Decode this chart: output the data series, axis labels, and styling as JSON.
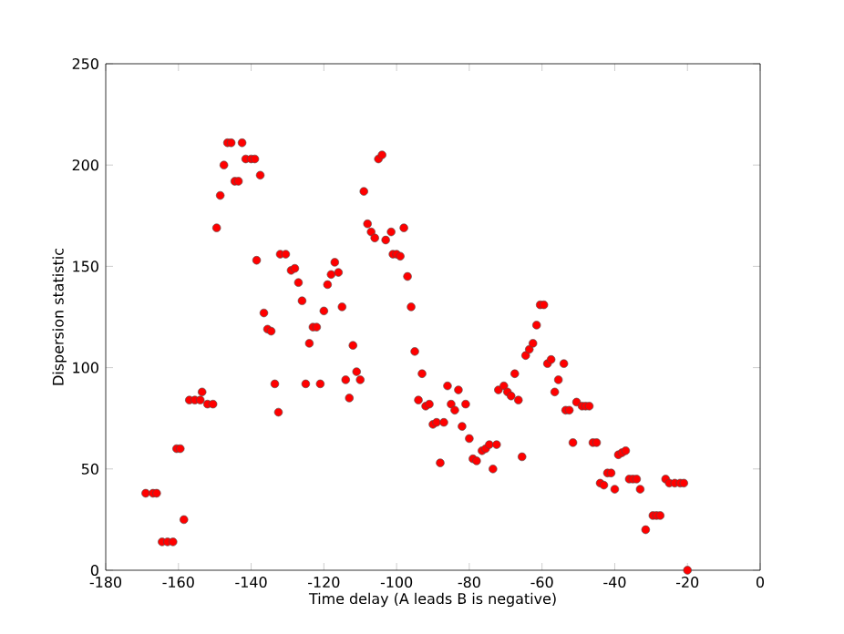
{
  "chart_data": {
    "type": "scatter",
    "xlabel": "Time delay (A leads B is negative)",
    "ylabel": "Dispersion statistic",
    "xlim": [
      -180,
      0
    ],
    "ylim": [
      0,
      250
    ],
    "xticks": [
      -180,
      -160,
      -140,
      -120,
      -100,
      -80,
      -60,
      -40,
      -20,
      0
    ],
    "yticks": [
      0,
      50,
      100,
      150,
      200,
      250
    ],
    "series": [
      {
        "color": "#ff0000",
        "x": [
          -169,
          -167,
          -166,
          -164.5,
          -163,
          -161.5,
          -160.5,
          -159.5,
          -158.5,
          -157,
          -155.5,
          -154,
          -153.5,
          -152,
          -150.5,
          -149.5,
          -148.5,
          -147.5,
          -146.5,
          -145.5,
          -144.5,
          -143.5,
          -142.5,
          -141.5,
          -140,
          -139,
          -138.5,
          -137.5,
          -136.5,
          -135.5,
          -134.5,
          -133.5,
          -132.5,
          -132,
          -130.5,
          -129,
          -128,
          -127,
          -126,
          -125,
          -124,
          -123,
          -122,
          -121,
          -120,
          -119,
          -118,
          -117,
          -116,
          -115,
          -114,
          -113,
          -112,
          -111,
          -110,
          -109,
          -108,
          -107,
          -106,
          -105,
          -104,
          -103,
          -101.5,
          -101,
          -100,
          -99,
          -98,
          -97,
          -96,
          -95,
          -94,
          -93,
          -92,
          -91,
          -90,
          -89,
          -88,
          -87,
          -86,
          -85,
          -84,
          -83,
          -82,
          -81,
          -80,
          -79,
          -78,
          -76.5,
          -75.5,
          -74.5,
          -73.5,
          -72.5,
          -72,
          -70.5,
          -69.5,
          -68.5,
          -67.5,
          -66.5,
          -65.5,
          -64.5,
          -63.5,
          -62.5,
          -61.5,
          -60.5,
          -59.5,
          -58.5,
          -57.5,
          -56.5,
          -55.5,
          -54,
          -53.5,
          -52.5,
          -51.5,
          -50.5,
          -49,
          -48,
          -47,
          -46,
          -45,
          -44,
          -43,
          -42,
          -41,
          -40,
          -39,
          -38,
          -37,
          -36,
          -35,
          -34,
          -33,
          -31.5,
          -29.5,
          -28.5,
          -27.5,
          -26,
          -25,
          -23.5,
          -22,
          -21,
          -20
        ],
        "values": [
          38,
          38,
          38,
          14,
          14,
          14,
          60,
          60,
          25,
          84,
          84,
          84,
          88,
          82,
          82,
          169,
          185,
          200,
          211,
          211,
          192,
          192,
          211,
          203,
          203,
          203,
          153,
          195,
          127,
          119,
          118,
          92,
          78,
          156,
          156,
          148,
          149,
          142,
          133,
          92,
          112,
          120,
          120,
          92,
          128,
          141,
          146,
          152,
          147,
          130,
          94,
          85,
          111,
          98,
          94,
          187,
          171,
          167,
          164,
          203,
          205,
          163,
          167,
          156,
          156,
          155,
          169,
          145,
          130,
          108,
          84,
          97,
          81,
          82,
          72,
          73,
          53,
          73,
          91,
          82,
          79,
          89,
          71,
          82,
          65,
          55,
          54,
          59,
          60,
          62,
          50,
          62,
          89,
          91,
          88,
          86,
          97,
          84,
          56,
          106,
          109,
          112,
          121,
          131,
          131,
          102,
          104,
          88,
          94,
          102,
          79,
          79,
          63,
          83,
          81,
          81,
          81,
          63,
          63,
          43,
          42,
          48,
          48,
          40,
          57,
          58,
          59,
          45,
          45,
          45,
          40,
          20,
          27,
          27,
          27,
          45,
          43,
          43,
          43,
          43,
          0
        ]
      }
    ]
  }
}
